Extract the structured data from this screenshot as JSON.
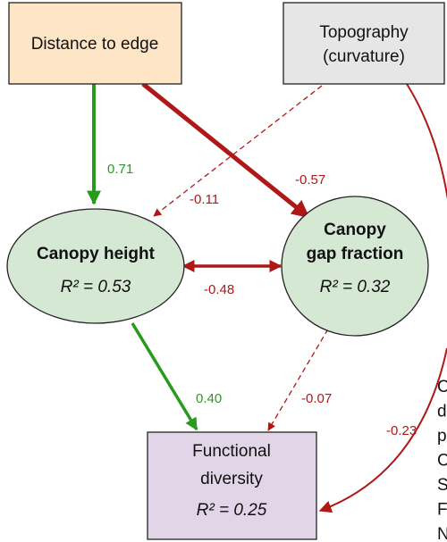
{
  "nodes": [
    {
      "lines": [
        "Distance to edge"
      ]
    },
    {
      "lines": [
        "Topography",
        "(curvature)"
      ]
    },
    {
      "lines": [
        "Canopy height",
        "R² = 0.53"
      ]
    },
    {
      "lines": [
        "Canopy",
        "gap fraction",
        "R² = 0.32"
      ]
    },
    {
      "lines": [
        "Functional",
        "diversity",
        "R² = 0.25"
      ]
    }
  ],
  "edges": [
    {
      "label": "0.71"
    },
    {
      "label": "-0.57"
    },
    {
      "label": "-0.11"
    },
    {
      "label": "-0.48"
    },
    {
      "label": "0.40"
    },
    {
      "label": "-0.07"
    },
    {
      "label": "-0.23"
    }
  ],
  "side_text": [
    "C",
    "d",
    "p",
    "C",
    "S",
    "F",
    "N"
  ]
}
